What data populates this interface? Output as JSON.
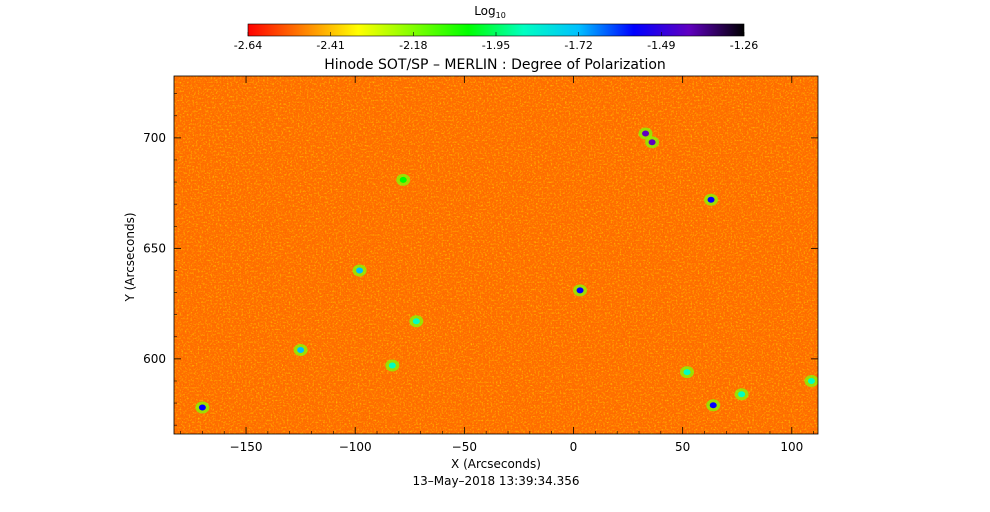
{
  "chart_data": {
    "type": "heatmap",
    "title": "Hinode SOT/SP – MERLIN : Degree of Polarization",
    "xlabel": "X (Arcseconds)",
    "ylabel": "Y (Arcseconds)",
    "xlim": [
      -183,
      112
    ],
    "ylim": [
      566,
      728
    ],
    "x_ticks": [
      -150,
      -100,
      -50,
      0,
      50,
      100
    ],
    "y_ticks": [
      600,
      650,
      700
    ],
    "colorbar": {
      "label_base": "Log",
      "label_sub": "10",
      "range": [
        -2.64,
        -1.26
      ],
      "ticks": [
        "-2.64",
        "-2.41",
        "-2.18",
        "-1.95",
        "-1.72",
        "-1.49",
        "-1.26"
      ],
      "colors": [
        "#ff0000",
        "#ff8000",
        "#ffff00",
        "#80ff00",
        "#00ff00",
        "#00ffc0",
        "#00c0ff",
        "#0000ff",
        "#6000c0",
        "#000000"
      ]
    },
    "timestamp": "13–May–2018 13:39:34.356",
    "background_level": -2.6,
    "features": [
      {
        "x": 33,
        "y": 702,
        "level": -1.35
      },
      {
        "x": 36,
        "y": 698,
        "level": -1.4
      },
      {
        "x": 63,
        "y": 672,
        "level": -1.6
      },
      {
        "x": -98,
        "y": 640,
        "level": -1.7
      },
      {
        "x": -72,
        "y": 617,
        "level": -1.9
      },
      {
        "x": -83,
        "y": 597,
        "level": -1.9
      },
      {
        "x": 3,
        "y": 631,
        "level": -1.5
      },
      {
        "x": 52,
        "y": 594,
        "level": -1.8
      },
      {
        "x": 64,
        "y": 579,
        "level": -1.55
      },
      {
        "x": -78,
        "y": 681,
        "level": -2.0
      },
      {
        "x": -170,
        "y": 578,
        "level": -1.6
      },
      {
        "x": 77,
        "y": 584,
        "level": -1.9
      },
      {
        "x": -125,
        "y": 604,
        "level": -1.7
      },
      {
        "x": 109,
        "y": 590,
        "level": -1.9
      }
    ]
  }
}
